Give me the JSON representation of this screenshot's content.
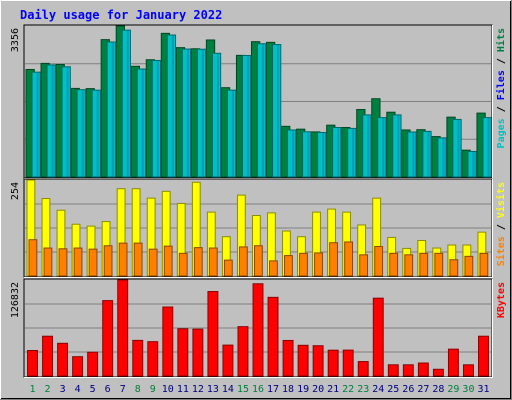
{
  "chart_data": {
    "type": "bar",
    "title": "Daily usage for January 2022",
    "categories": [
      "1",
      "2",
      "3",
      "4",
      "5",
      "6",
      "7",
      "8",
      "9",
      "10",
      "11",
      "12",
      "13",
      "14",
      "15",
      "16",
      "17",
      "18",
      "19",
      "20",
      "21",
      "22",
      "23",
      "24",
      "25",
      "26",
      "27",
      "28",
      "29",
      "30",
      "31"
    ],
    "weekend_days": [
      "1",
      "2",
      "8",
      "9",
      "15",
      "16",
      "22",
      "23",
      "29",
      "30"
    ],
    "panels": [
      {
        "id": "hits-panel",
        "max_label": "3356",
        "ylim": [
          0,
          3356
        ],
        "side_label": [
          "Pages",
          "Files",
          "Hits"
        ],
        "side_colors": [
          "#00c0c0",
          "#0000ff",
          "#008040"
        ],
        "series": [
          {
            "name": "Hits",
            "color": "#008040",
            "values": [
              2390,
              2525,
              2500,
              1969,
              1964,
              3053,
              3356,
              2460,
              2606,
              3193,
              2875,
              2850,
              3045,
              1985,
              2703,
              3008,
              2993,
              1126,
              1063,
              1002,
              1152,
              1100,
              1500,
              1740,
              1440,
              1045,
              1052,
              898,
              1330,
              596,
              1420
            ]
          },
          {
            "name": "Files",
            "color": "#0000ff",
            "values": [
              2330,
              2490,
              2450,
              1940,
              1930,
              3000,
              3264,
              2400,
              2590,
              3155,
              2844,
              2840,
              2750,
              1930,
              2700,
              2962,
              2944,
              1045,
              1005,
              990,
              1100,
              1080,
              1380,
              1320,
              1380,
              1000,
              1014,
              870,
              1280,
              568,
              1320
            ]
          },
          {
            "name": "Pages",
            "color": "#00c0c0",
            "values": [
              2330,
              2490,
              2450,
              1940,
              1930,
              3000,
              3264,
              2400,
              2590,
              3155,
              2844,
              2840,
              2750,
              1930,
              2700,
              2962,
              2944,
              1045,
              1005,
              990,
              1100,
              1080,
              1380,
              1320,
              1380,
              1000,
              1014,
              870,
              1280,
              568,
              1320
            ]
          }
        ]
      },
      {
        "id": "visits-panel",
        "max_label": "254",
        "ylim": [
          0,
          254
        ],
        "side_label": [
          "Sites",
          "Visits"
        ],
        "side_colors": [
          "#ff8000",
          "#ffff00"
        ],
        "series": [
          {
            "name": "Visits",
            "color": "#ffff00",
            "values": [
              254,
              205,
              174,
              137,
              132,
              144,
              231,
              231,
              206,
              224,
              192,
              248,
              169,
              104,
              214,
              160,
              167,
              119,
              104,
              169,
              177,
              169,
              135,
              206,
              102,
              73,
              94,
              74,
              82,
              82,
              116
            ]
          },
          {
            "name": "Sites",
            "color": "#ff8000",
            "values": [
              96,
              74,
              72,
              74,
              71,
              80,
              87,
              87,
              71,
              79,
              60,
              75,
              74,
              42,
              77,
              80,
              40,
              54,
              60,
              61,
              88,
              90,
              56,
              78,
              60,
              56,
              60,
              60,
              43,
              52,
              60
            ]
          }
        ]
      },
      {
        "id": "kbytes-panel",
        "max_label": "126832",
        "ylim": [
          0,
          126832
        ],
        "side_label": [
          "KBytes"
        ],
        "side_colors": [
          "#ff0000"
        ],
        "series": [
          {
            "name": "KBytes",
            "color": "#ff0000",
            "values": [
              33680,
              52560,
              43200,
              25520,
              31400,
              99600,
              126832,
              47040,
              45360,
              91120,
              62400,
              61900,
              111600,
              40800,
              65200,
              121840,
              103920,
              46960,
              40560,
              40000,
              34080,
              34200,
              19040,
              102800,
              14800,
              14800,
              17120,
              8880,
              35440,
              14800,
              52560
            ]
          }
        ]
      }
    ],
    "grid": true,
    "legend": "right-side vertical"
  },
  "colors": {
    "background": "#c0c0c0",
    "title": "#0000ff",
    "weekday_label": "#000080",
    "weekend_label": "#008040",
    "gridline": "#808080"
  }
}
